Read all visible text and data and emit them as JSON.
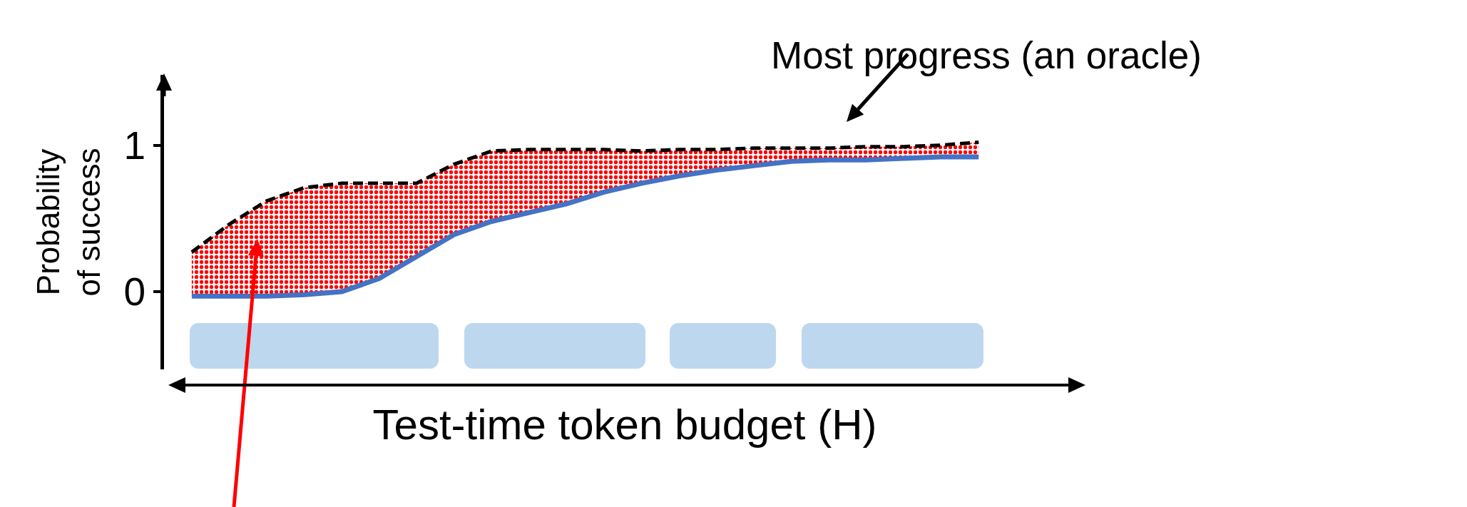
{
  "chart_data": {
    "type": "line",
    "xlabel": "Test-time token budget (H)",
    "ylabel": "Probability\nof success",
    "categories": [
      null,
      null,
      null,
      null,
      null,
      null,
      null,
      null,
      null,
      null,
      null,
      null,
      null,
      null,
      null,
      null,
      null,
      null,
      null,
      null,
      null,
      null
    ],
    "series": [
      {
        "color": "#4472c4",
        "line_style": "solid",
        "values": [
          -0.03,
          -0.03,
          -0.03,
          -0.02,
          0.0,
          0.09,
          0.24,
          0.39,
          0.48,
          0.54,
          0.6,
          0.68,
          0.74,
          0.79,
          0.83,
          0.86,
          0.89,
          0.9,
          0.9,
          0.91,
          0.92,
          0.92
        ]
      },
      {
        "color": "#000000",
        "line_style": "dashed",
        "values": [
          0.27,
          0.46,
          0.62,
          0.71,
          0.74,
          0.74,
          0.74,
          0.87,
          0.96,
          0.97,
          0.97,
          0.97,
          0.96,
          0.97,
          0.97,
          0.98,
          0.98,
          0.98,
          0.99,
          0.99,
          1.0,
          1.02
        ],
        "lower": [
          -0.03,
          -0.03,
          -0.03,
          -0.02,
          0.0,
          0.09,
          0.24,
          0.39,
          0.48,
          0.54,
          0.6,
          0.68,
          0.74,
          0.79,
          0.83,
          0.86,
          0.89,
          0.9,
          0.9,
          0.91,
          0.92,
          0.92
        ],
        "upper": [
          0.27,
          0.46,
          0.62,
          0.71,
          0.74,
          0.74,
          0.74,
          0.87,
          0.96,
          0.97,
          0.97,
          0.97,
          0.96,
          0.97,
          0.97,
          0.98,
          0.98,
          0.98,
          0.99,
          0.99,
          1.0,
          1.02
        ]
      }
    ],
    "ylim": [
      -0.53,
      1.48
    ],
    "yticks": [
      0,
      1
    ],
    "grid": false,
    "marker": "none",
    "tick_labels": "y",
    "annotations": [
      "Most progress (an oracle)"
    ]
  }
}
